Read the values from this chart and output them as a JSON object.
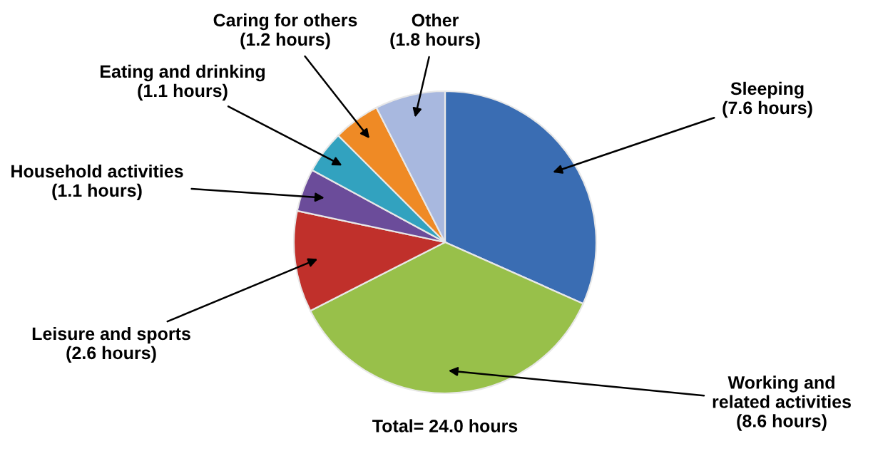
{
  "chart_data": {
    "type": "pie",
    "categories": [
      "Sleeping",
      "Working and\nrelated activities",
      "Leisure and sports",
      "Household activities",
      "Eating and drinking",
      "Caring for others",
      "Other"
    ],
    "values": [
      7.6,
      8.6,
      2.6,
      1.1,
      1.1,
      1.2,
      1.8
    ],
    "value_labels": [
      "(7.6 hours)",
      "(8.6 hours)",
      "(2.6 hours)",
      "(1.1 hours)",
      "(1.1 hours)",
      "(1.2 hours)",
      "(1.8 hours)"
    ],
    "colors": [
      "#3a6db3",
      "#98c04a",
      "#c0302b",
      "#6b4c9a",
      "#32a2bf",
      "#ef8a25",
      "#a8b8df"
    ],
    "annotations": [
      "Total= 24.0 hours"
    ]
  }
}
